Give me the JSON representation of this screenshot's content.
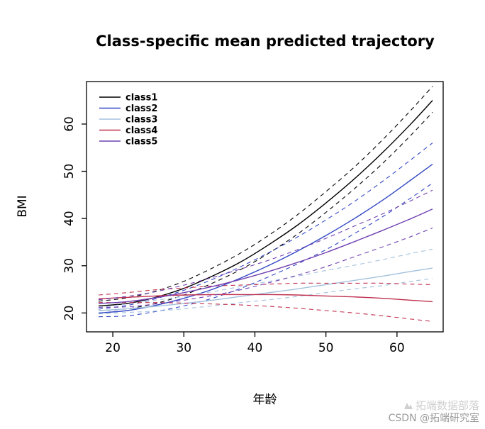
{
  "title": "Class-specific mean predicted trajectory",
  "watermark": {
    "line1": "拓端数据部落",
    "line2": "CSDN @拓端研究室"
  },
  "chart_data": {
    "type": "line",
    "title": "Class-specific mean predicted trajectory",
    "xlabel": "年龄",
    "ylabel": "BMI",
    "xlim": [
      16.3,
      66.5
    ],
    "ylim": [
      16,
      69
    ],
    "x_ticks": [
      20,
      30,
      40,
      50,
      60
    ],
    "y_ticks": [
      20,
      30,
      40,
      50,
      60
    ],
    "grid": false,
    "legend_position": "top-left",
    "legend": [
      {
        "label": "class1",
        "color": "#000000"
      },
      {
        "label": "class2",
        "color": "#3348C4"
      },
      {
        "label": "class3",
        "color": "#A3C1DD"
      },
      {
        "label": "class4",
        "color": "#C03050"
      },
      {
        "label": "class5",
        "color": "#7040B0"
      }
    ],
    "x": [
      18,
      22,
      26,
      30,
      34,
      38,
      42,
      46,
      50,
      54,
      58,
      62,
      65
    ],
    "series": [
      {
        "name": "class1-mean",
        "color": "#000000",
        "style": "solid",
        "values": [
          21.5,
          22.0,
          23.3,
          25.2,
          27.8,
          30.8,
          34.5,
          38.6,
          43.3,
          48.4,
          54.0,
          60.1,
          65.0
        ]
      },
      {
        "name": "class1-upper-ci",
        "color": "#000000",
        "style": "dashed",
        "values": [
          22.5,
          23.2,
          24.6,
          26.7,
          29.5,
          32.7,
          36.5,
          40.8,
          45.7,
          50.9,
          56.7,
          63.0,
          68.0
        ]
      },
      {
        "name": "class1-lower-ci",
        "color": "#000000",
        "style": "dashed",
        "values": [
          20.5,
          20.9,
          22.0,
          23.8,
          26.3,
          29.2,
          32.7,
          36.7,
          41.3,
          46.3,
          51.7,
          57.7,
          62.5
        ]
      },
      {
        "name": "class2-mean",
        "color": "#3348C4",
        "style": "solid",
        "values": [
          20.0,
          20.5,
          21.6,
          23.1,
          25.0,
          27.4,
          30.1,
          33.1,
          36.4,
          40.0,
          43.9,
          48.2,
          51.5
        ]
      },
      {
        "name": "class2-upper-ci",
        "color": "#3348C4",
        "style": "dashed",
        "values": [
          20.8,
          21.6,
          23.0,
          24.8,
          27.1,
          29.8,
          32.8,
          36.1,
          39.7,
          43.6,
          47.9,
          52.5,
          56.0
        ]
      },
      {
        "name": "class2-lower-ci",
        "color": "#3348C4",
        "style": "dashed",
        "values": [
          19.2,
          19.4,
          20.3,
          21.5,
          23.1,
          25.2,
          27.7,
          30.4,
          33.4,
          36.8,
          40.4,
          44.4,
          47.5
        ]
      },
      {
        "name": "class3-mean",
        "color": "#A3C1DD",
        "style": "solid",
        "values": [
          20.5,
          20.9,
          21.4,
          22.0,
          22.7,
          23.5,
          24.3,
          25.1,
          26.0,
          26.9,
          27.8,
          28.8,
          29.5
        ]
      },
      {
        "name": "class3-upper-ci",
        "color": "#A3C1DD",
        "style": "dashed",
        "values": [
          21.2,
          21.9,
          22.7,
          23.5,
          24.5,
          25.6,
          26.7,
          27.8,
          29.0,
          30.1,
          31.3,
          32.6,
          33.5
        ]
      },
      {
        "name": "class3-lower-ci",
        "color": "#A3C1DD",
        "style": "dashed",
        "values": [
          19.8,
          20.1,
          20.4,
          20.9,
          21.5,
          22.2,
          22.8,
          23.5,
          24.3,
          25.1,
          25.8,
          26.7,
          27.3
        ]
      },
      {
        "name": "class4-mean",
        "color": "#C03050",
        "style": "solid",
        "values": [
          23.0,
          23.3,
          23.6,
          23.8,
          23.9,
          23.9,
          23.9,
          23.8,
          23.6,
          23.4,
          23.1,
          22.7,
          22.4
        ]
      },
      {
        "name": "class4-upper-ci",
        "color": "#C03050",
        "style": "dashed",
        "values": [
          23.8,
          24.3,
          24.9,
          25.3,
          25.7,
          25.9,
          26.1,
          26.3,
          26.3,
          26.3,
          26.3,
          26.1,
          26.0
        ]
      },
      {
        "name": "class4-lower-ci",
        "color": "#C03050",
        "style": "dashed",
        "values": [
          22.2,
          22.2,
          22.2,
          22.1,
          21.9,
          21.7,
          21.4,
          21.0,
          20.5,
          20.0,
          19.4,
          18.7,
          18.2
        ]
      },
      {
        "name": "class5-mean",
        "color": "#7040B0",
        "style": "solid",
        "values": [
          22.0,
          22.4,
          23.2,
          24.3,
          25.6,
          27.1,
          28.8,
          30.7,
          32.8,
          35.1,
          37.5,
          40.0,
          42.0
        ]
      },
      {
        "name": "class5-upper-ci",
        "color": "#7040B0",
        "style": "dashed",
        "values": [
          22.8,
          23.5,
          24.5,
          25.9,
          27.5,
          29.3,
          31.2,
          33.4,
          35.8,
          38.4,
          41.0,
          43.8,
          46.0
        ]
      },
      {
        "name": "class5-lower-ci",
        "color": "#7040B0",
        "style": "dashed",
        "values": [
          21.2,
          21.3,
          21.9,
          22.7,
          23.7,
          24.9,
          26.4,
          28.0,
          29.8,
          31.9,
          34.0,
          36.2,
          38.0
        ]
      }
    ]
  }
}
